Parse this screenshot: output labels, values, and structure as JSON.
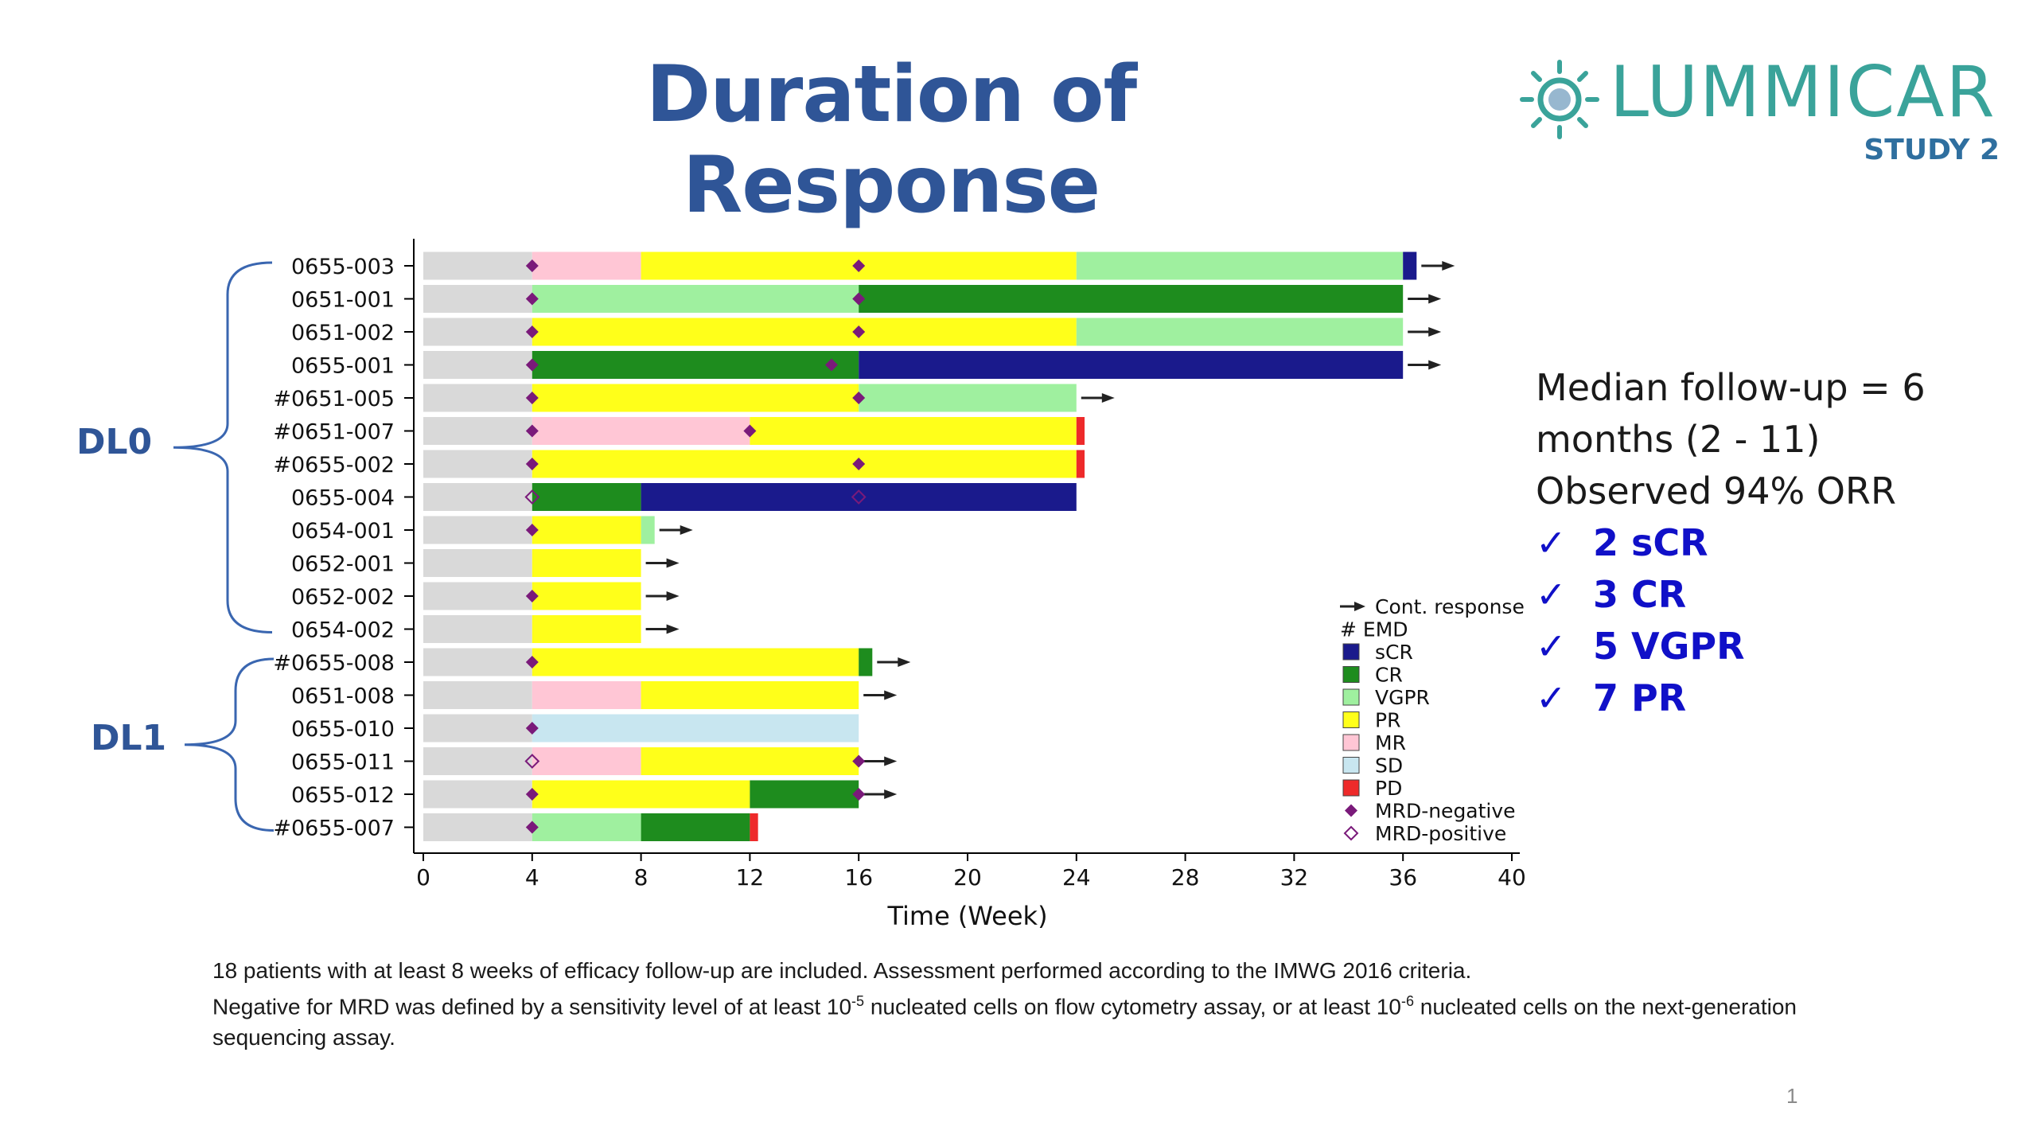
{
  "slide": {
    "title": "Duration of Response",
    "logo_name": "LUMMICAR",
    "logo_sub": "STUDY 2",
    "page_number": "1"
  },
  "summary": {
    "median_line1": "Median follow-up = 6",
    "median_line2": "months (2 - 11)",
    "orr": "Observed 94% ORR",
    "tick": "✓",
    "checks": [
      "2 sCR",
      "3 CR",
      "5 VGPR",
      "7 PR"
    ]
  },
  "groups": {
    "dl0": "DL0",
    "dl1": "DL1"
  },
  "footnote": {
    "line1": "18 patients with at least 8 weeks of efficacy follow-up are included. Assessment performed according to the IMWG 2016 criteria.",
    "line2_a": "Negative for MRD was defined by a sensitivity level of at least 10",
    "line2_sup1": "-5",
    "line2_b": " nucleated cells on flow cytometry assay, or at least 10",
    "line2_sup2": "-6",
    "line2_c": " nucleated cells on the next-generation sequencing assay."
  },
  "chart_data": {
    "type": "swimmer",
    "xlabel": "Time (Week)",
    "xlim": [
      0,
      40
    ],
    "xticks": [
      0,
      4,
      8,
      12,
      16,
      20,
      24,
      28,
      32,
      36,
      40
    ],
    "colors": {
      "baseline": "#d9d9d9",
      "sCR": "#1a1a8c",
      "CR": "#1e8c1e",
      "VGPR": "#9ff09f",
      "PR": "#ffff1a",
      "MR": "#ffc6d5",
      "SD": "#c8e6f0",
      "PD": "#ee2a2a",
      "MRD": "#7a1a7a",
      "arrow": "#222222"
    },
    "legend": {
      "cont": "Cont. response",
      "emd": "# EMD",
      "items": [
        {
          "key": "sCR",
          "label": "sCR"
        },
        {
          "key": "CR",
          "label": "CR"
        },
        {
          "key": "VGPR",
          "label": "VGPR"
        },
        {
          "key": "PR",
          "label": "PR"
        },
        {
          "key": "MR",
          "label": "MR"
        },
        {
          "key": "SD",
          "label": "SD"
        },
        {
          "key": "PD",
          "label": "PD"
        }
      ],
      "mrd_neg": "MRD-negative",
      "mrd_pos": "MRD-positive"
    },
    "patients": [
      {
        "id": "0655-003",
        "group": "DL0",
        "segments": [
          [
            "baseline",
            0,
            4
          ],
          [
            "MR",
            4,
            8
          ],
          [
            "PR",
            8,
            24
          ],
          [
            "VGPR",
            24,
            36
          ],
          [
            "sCR",
            36,
            36.5
          ]
        ],
        "mrd_neg": [
          4,
          16
        ],
        "mrd_pos": [],
        "continuing": true
      },
      {
        "id": "0651-001",
        "group": "DL0",
        "segments": [
          [
            "baseline",
            0,
            4
          ],
          [
            "VGPR",
            4,
            16
          ],
          [
            "CR",
            16,
            36
          ]
        ],
        "mrd_neg": [
          4,
          16
        ],
        "mrd_pos": [],
        "continuing": true
      },
      {
        "id": "0651-002",
        "group": "DL0",
        "segments": [
          [
            "baseline",
            0,
            4
          ],
          [
            "PR",
            4,
            24
          ],
          [
            "VGPR",
            24,
            36
          ]
        ],
        "mrd_neg": [
          4,
          16
        ],
        "mrd_pos": [],
        "continuing": true
      },
      {
        "id": "0655-001",
        "group": "DL0",
        "segments": [
          [
            "baseline",
            0,
            4
          ],
          [
            "CR",
            4,
            16
          ],
          [
            "sCR",
            16,
            36
          ]
        ],
        "mrd_neg": [
          4,
          15
        ],
        "mrd_pos": [],
        "continuing": true
      },
      {
        "id": "#0651-005",
        "group": "DL0",
        "segments": [
          [
            "baseline",
            0,
            4
          ],
          [
            "PR",
            4,
            16
          ],
          [
            "VGPR",
            16,
            24
          ]
        ],
        "mrd_neg": [
          4,
          16
        ],
        "mrd_pos": [],
        "continuing": true
      },
      {
        "id": "#0651-007",
        "group": "DL0",
        "segments": [
          [
            "baseline",
            0,
            4
          ],
          [
            "MR",
            4,
            12
          ],
          [
            "PR",
            12,
            24
          ],
          [
            "PD",
            24,
            24.3
          ]
        ],
        "mrd_neg": [
          4,
          12
        ],
        "mrd_pos": [],
        "continuing": false
      },
      {
        "id": "#0655-002",
        "group": "DL0",
        "segments": [
          [
            "baseline",
            0,
            4
          ],
          [
            "PR",
            4,
            24
          ],
          [
            "PD",
            24,
            24.3
          ]
        ],
        "mrd_neg": [
          4,
          16
        ],
        "mrd_pos": [],
        "continuing": false
      },
      {
        "id": "0655-004",
        "group": "DL0",
        "segments": [
          [
            "baseline",
            0,
            4
          ],
          [
            "CR",
            4,
            8
          ],
          [
            "sCR",
            8,
            24
          ]
        ],
        "mrd_neg": [],
        "mrd_pos": [
          4,
          16
        ],
        "continuing": false
      },
      {
        "id": "0654-001",
        "group": "DL0",
        "segments": [
          [
            "baseline",
            0,
            4
          ],
          [
            "PR",
            4,
            8
          ],
          [
            "VGPR",
            8,
            8.5
          ]
        ],
        "mrd_neg": [
          4
        ],
        "mrd_pos": [],
        "continuing": true
      },
      {
        "id": "0652-001",
        "group": "DL0",
        "segments": [
          [
            "baseline",
            0,
            4
          ],
          [
            "PR",
            4,
            8
          ]
        ],
        "mrd_neg": [],
        "mrd_pos": [],
        "continuing": true
      },
      {
        "id": "0652-002",
        "group": "DL0",
        "segments": [
          [
            "baseline",
            0,
            4
          ],
          [
            "PR",
            4,
            8
          ]
        ],
        "mrd_neg": [
          4
        ],
        "mrd_pos": [],
        "continuing": true
      },
      {
        "id": "0654-002",
        "group": "DL0",
        "segments": [
          [
            "baseline",
            0,
            4
          ],
          [
            "PR",
            4,
            8
          ]
        ],
        "mrd_neg": [],
        "mrd_pos": [],
        "continuing": true
      },
      {
        "id": "#0655-008",
        "group": "DL1",
        "segments": [
          [
            "baseline",
            0,
            4
          ],
          [
            "PR",
            4,
            16
          ],
          [
            "CR",
            16,
            16.5
          ]
        ],
        "mrd_neg": [
          4
        ],
        "mrd_pos": [],
        "continuing": true
      },
      {
        "id": "0651-008",
        "group": "DL1",
        "segments": [
          [
            "baseline",
            0,
            4
          ],
          [
            "MR",
            4,
            8
          ],
          [
            "PR",
            8,
            16
          ]
        ],
        "mrd_neg": [],
        "mrd_pos": [],
        "continuing": true
      },
      {
        "id": "0655-010",
        "group": "DL1",
        "segments": [
          [
            "baseline",
            0,
            4
          ],
          [
            "SD",
            4,
            16
          ]
        ],
        "mrd_neg": [
          4
        ],
        "mrd_pos": [],
        "continuing": false
      },
      {
        "id": "0655-011",
        "group": "DL1",
        "segments": [
          [
            "baseline",
            0,
            4
          ],
          [
            "MR",
            4,
            8
          ],
          [
            "PR",
            8,
            16
          ]
        ],
        "mrd_neg": [
          16
        ],
        "mrd_pos": [
          4
        ],
        "continuing": true
      },
      {
        "id": "0655-012",
        "group": "DL1",
        "segments": [
          [
            "baseline",
            0,
            4
          ],
          [
            "PR",
            4,
            12
          ],
          [
            "CR",
            12,
            16
          ]
        ],
        "mrd_neg": [
          4,
          16
        ],
        "mrd_pos": [],
        "continuing": true
      },
      {
        "id": "#0655-007",
        "group": "DL1",
        "segments": [
          [
            "baseline",
            0,
            4
          ],
          [
            "VGPR",
            4,
            8
          ],
          [
            "CR",
            8,
            12
          ],
          [
            "PD",
            12,
            12.3
          ]
        ],
        "mrd_neg": [
          4
        ],
        "mrd_pos": [],
        "continuing": false
      }
    ]
  }
}
